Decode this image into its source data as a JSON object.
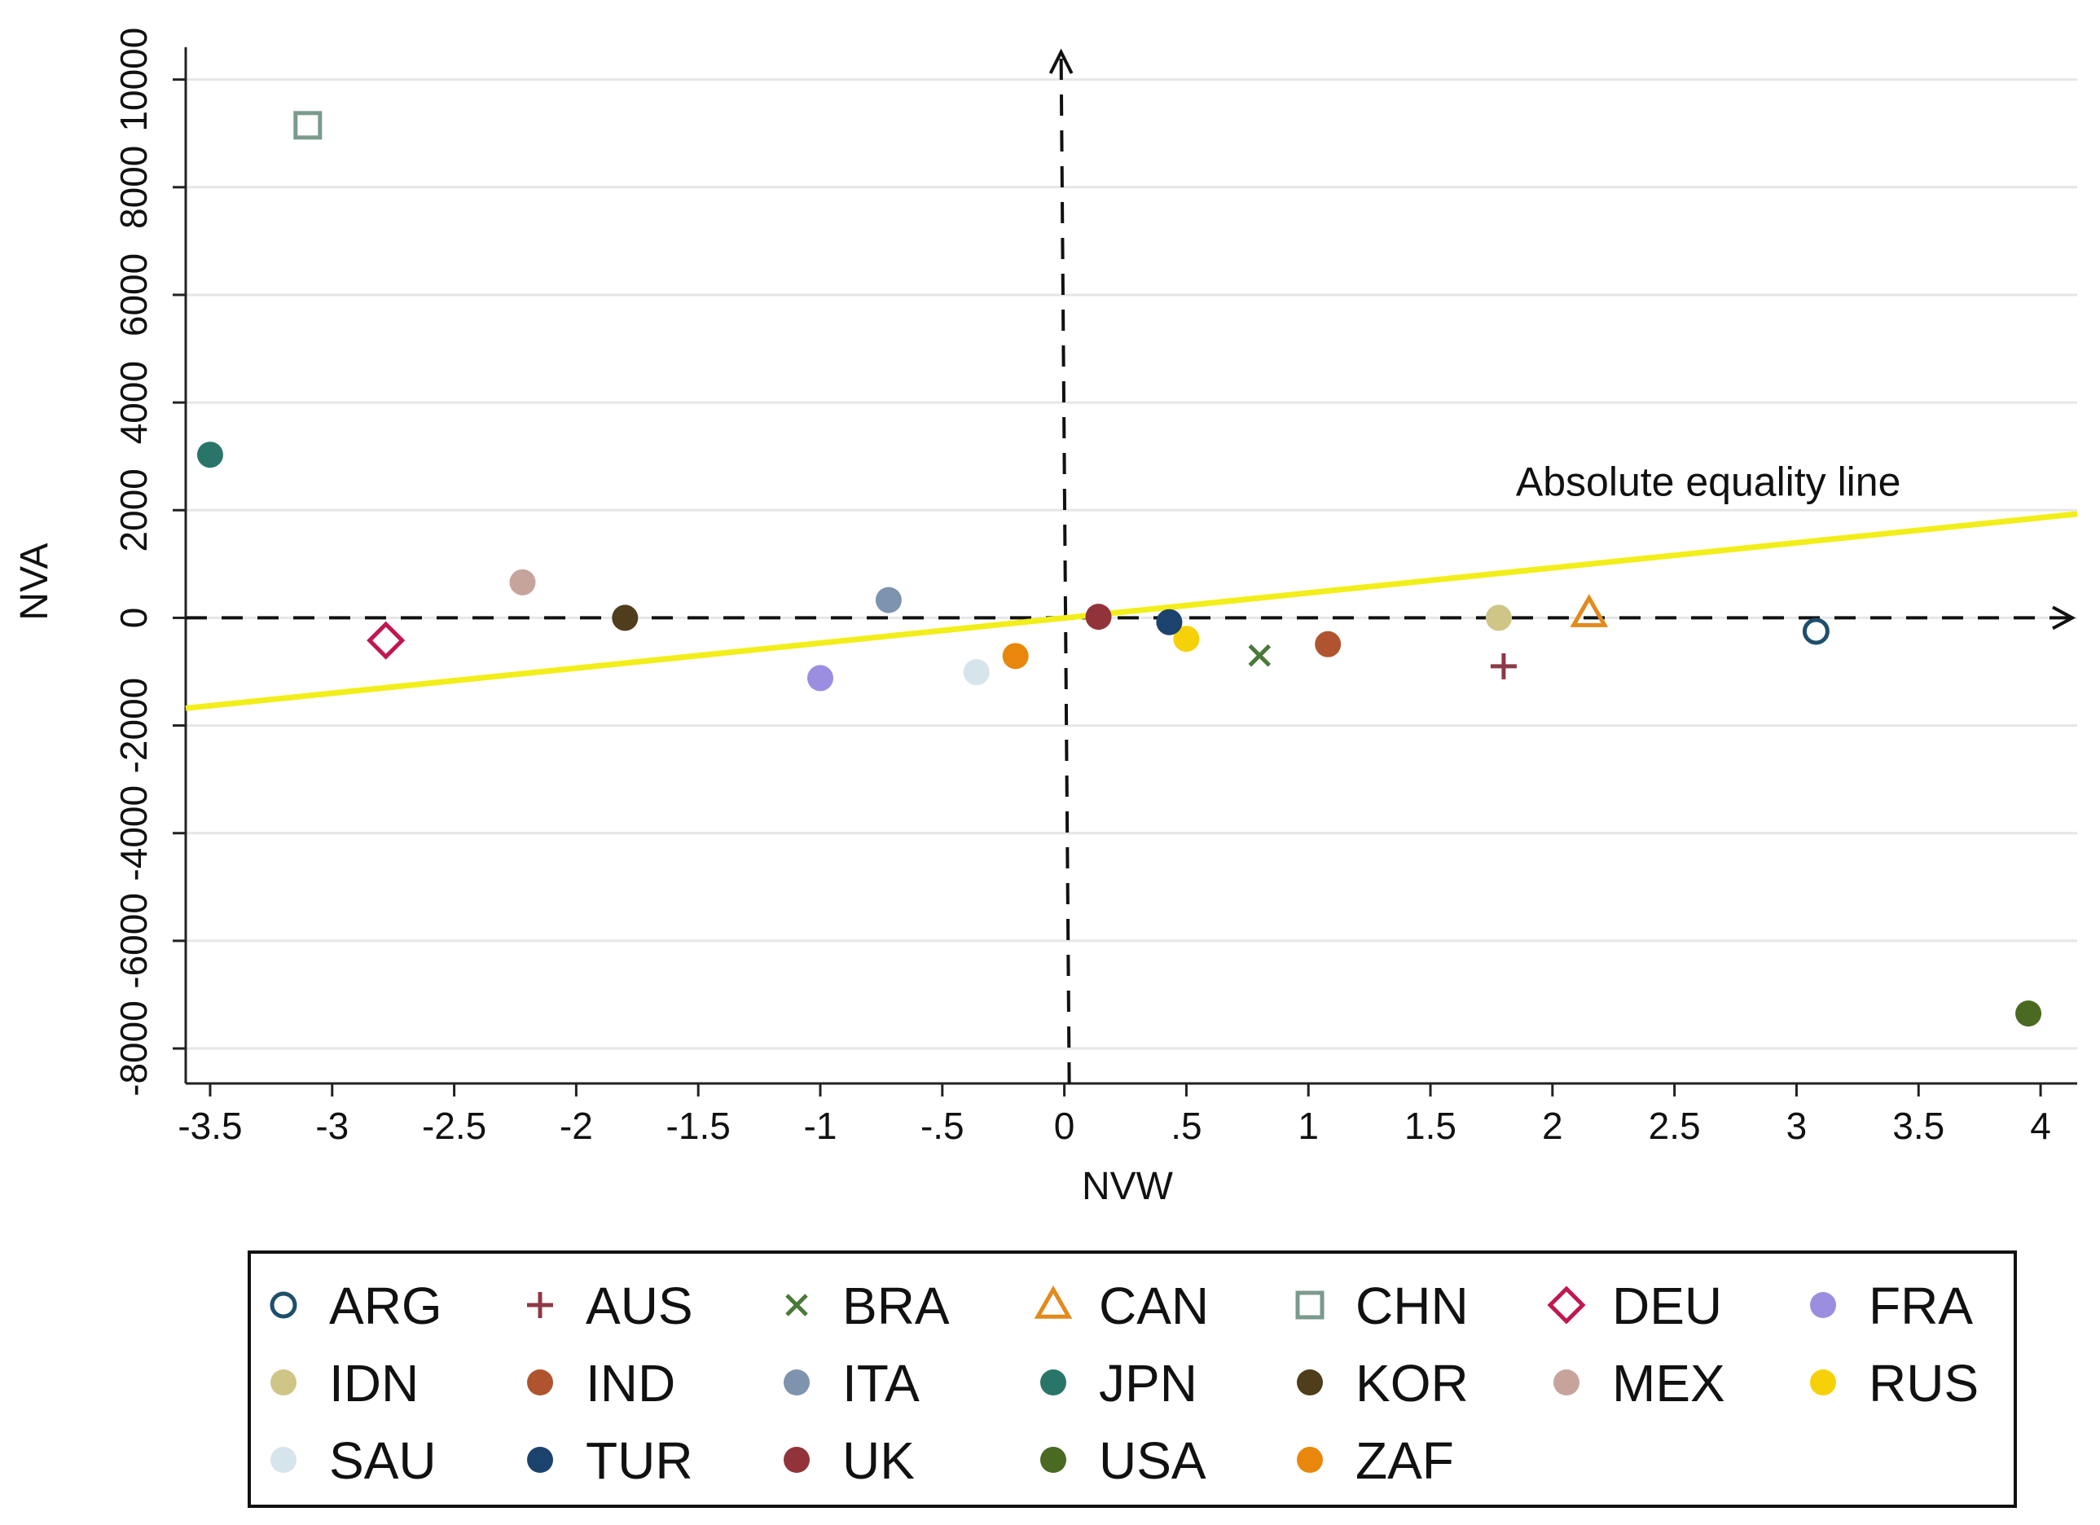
{
  "chart_data": {
    "type": "scatter",
    "title": "",
    "xlabel": "NVW",
    "ylabel": "NVA",
    "xlim": [
      -3.6,
      4.15
    ],
    "ylim": [
      -8650,
      10600
    ],
    "grid": true,
    "x_ticks": [
      -3.5,
      -3,
      -2.5,
      -2,
      -1.5,
      -1,
      -0.5,
      0,
      0.5,
      1,
      1.5,
      2,
      2.5,
      3,
      3.5,
      4
    ],
    "x_tick_labels": [
      "-3.5",
      "-3",
      "-2.5",
      "-2",
      "-1.5",
      "-1",
      "-.5",
      "0",
      ".5",
      "1",
      "1.5",
      "2",
      "2.5",
      "3",
      "3.5",
      "4"
    ],
    "y_ticks": [
      -8000,
      -6000,
      -4000,
      -2000,
      0,
      2000,
      4000,
      6000,
      8000,
      10000
    ],
    "y_tick_labels": [
      "-8000",
      "-6000",
      "-4000",
      "-2000",
      "0",
      "2000",
      "4000",
      "6000",
      "8000",
      "10000"
    ],
    "equality_line": {
      "label": "Absolute equality line",
      "x": [
        -3.6,
        4.15
      ],
      "y": [
        -1680,
        1930
      ],
      "color": "#f2ee1a"
    },
    "annotation": {
      "text": "Absolute equality line",
      "x": 1.85,
      "y": 2270
    },
    "reference_axes": {
      "x_zero_line": true,
      "y_zero_line": true,
      "style": "dashed",
      "arrows": true
    },
    "legend_position": "bottom",
    "series": [
      {
        "name": "ARG",
        "marker": "circle-open",
        "color": "#1e4f6b",
        "x": 3.08,
        "y": -250
      },
      {
        "name": "AUS",
        "marker": "plus",
        "color": "#8c3a46",
        "x": 1.8,
        "y": -900
      },
      {
        "name": "BRA",
        "marker": "x",
        "color": "#4a7a3b",
        "x": 0.8,
        "y": -700
      },
      {
        "name": "CAN",
        "marker": "triangle-open",
        "color": "#e28a1c",
        "x": 2.15,
        "y": 80
      },
      {
        "name": "CHN",
        "marker": "square-open",
        "color": "#7a9a8c",
        "x": -3.1,
        "y": 9150
      },
      {
        "name": "DEU",
        "marker": "diamond-open",
        "color": "#c0174f",
        "x": -2.78,
        "y": -420
      },
      {
        "name": "FRA",
        "marker": "circle",
        "color": "#9b8ee0",
        "x": -1.0,
        "y": -1120
      },
      {
        "name": "IDN",
        "marker": "circle",
        "color": "#cfc587",
        "x": 1.78,
        "y": 0
      },
      {
        "name": "IND",
        "marker": "circle",
        "color": "#b0542f",
        "x": 1.08,
        "y": -490
      },
      {
        "name": "ITA",
        "marker": "circle",
        "color": "#7e93ad",
        "x": -0.72,
        "y": 330
      },
      {
        "name": "JPN",
        "marker": "circle",
        "color": "#2a756a",
        "x": -3.5,
        "y": 3030
      },
      {
        "name": "KOR",
        "marker": "circle",
        "color": "#4f3d1b",
        "x": -1.8,
        "y": 0
      },
      {
        "name": "MEX",
        "marker": "circle",
        "color": "#c6a49b",
        "x": -2.22,
        "y": 660
      },
      {
        "name": "RUS",
        "marker": "circle",
        "color": "#f7d108",
        "x": 0.5,
        "y": -390
      },
      {
        "name": "SAU",
        "marker": "circle",
        "color": "#d6e4ec",
        "x": -0.36,
        "y": -1010
      },
      {
        "name": "TUR",
        "marker": "circle",
        "color": "#1b436e",
        "x": 0.43,
        "y": -80
      },
      {
        "name": "UK",
        "marker": "circle",
        "color": "#92333a",
        "x": 0.14,
        "y": 20
      },
      {
        "name": "USA",
        "marker": "circle",
        "color": "#4a6a22",
        "x": 3.95,
        "y": -7350
      },
      {
        "name": "ZAF",
        "marker": "circle",
        "color": "#e8870c",
        "x": -0.2,
        "y": -710
      }
    ]
  }
}
